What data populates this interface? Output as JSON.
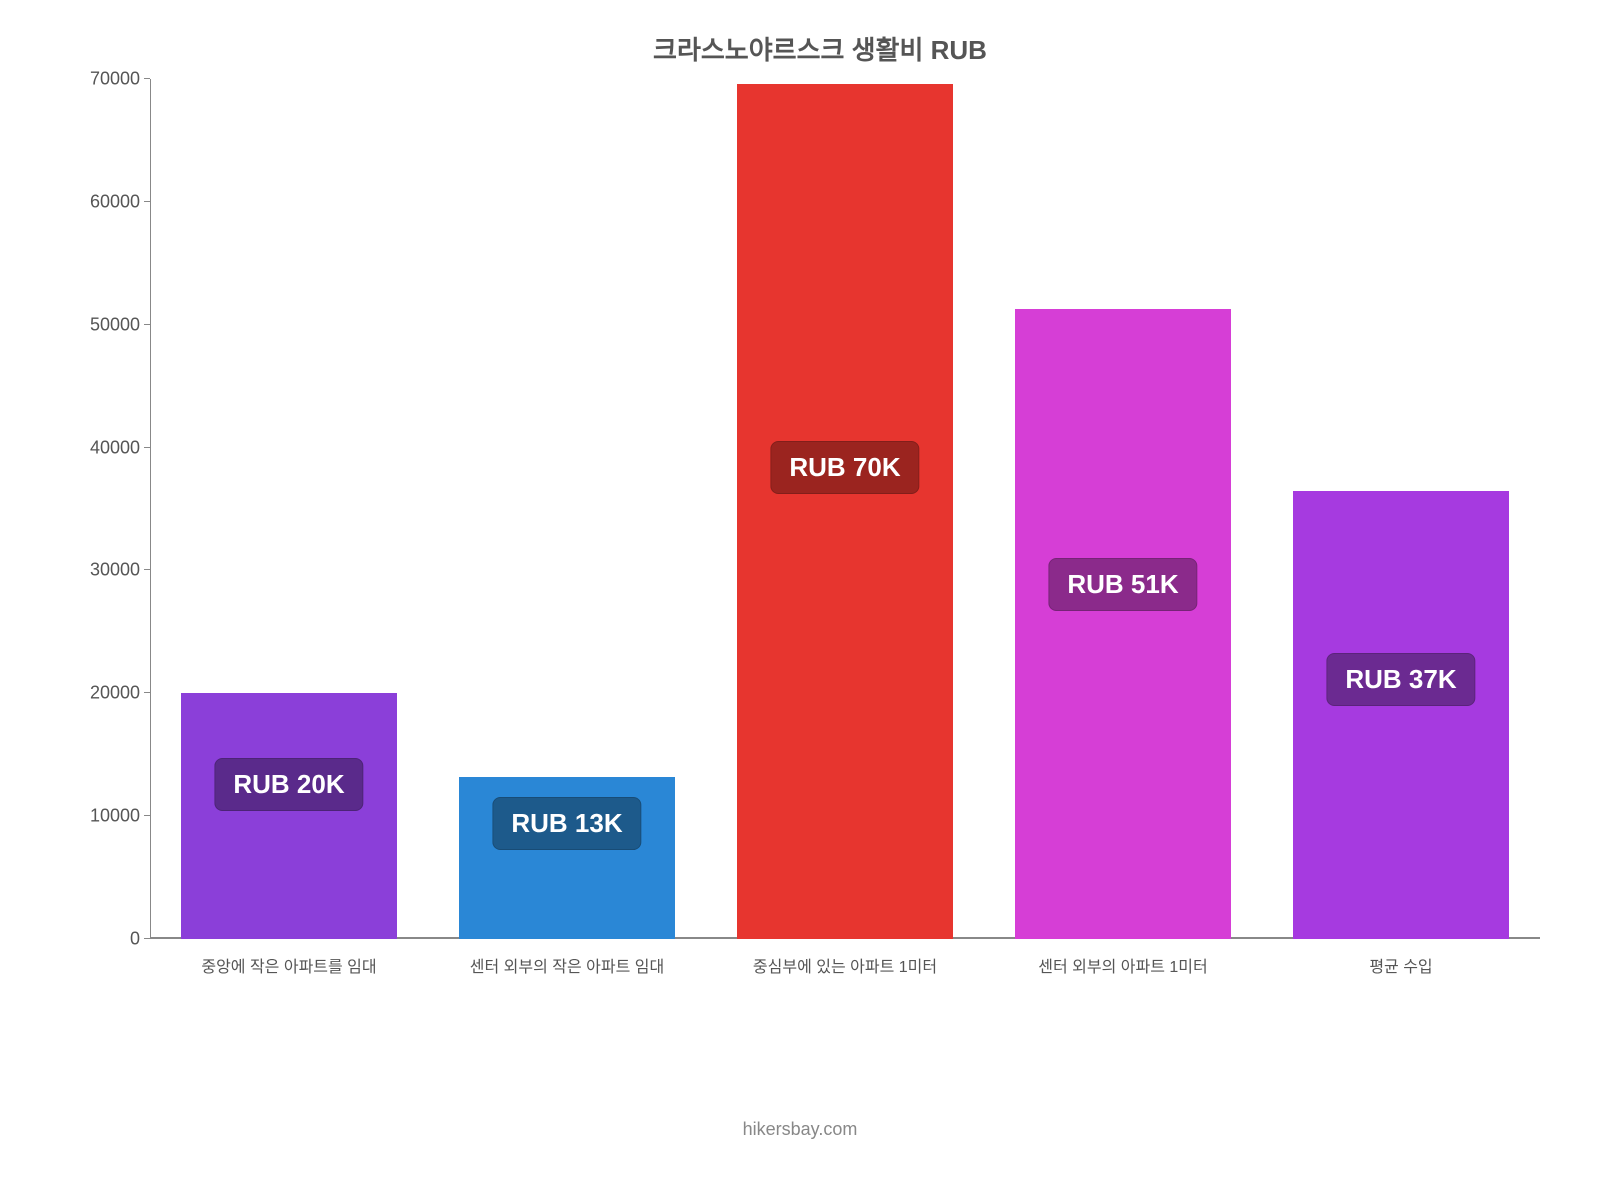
{
  "chart": {
    "type": "bar",
    "title": "크라스노야르스크 생활비 RUB",
    "title_fontsize": 26,
    "title_color": "#555555",
    "background_color": "#ffffff",
    "axis_color": "#888888",
    "label_color": "#555555",
    "ylim": [
      0,
      70000
    ],
    "ytick_step": 10000,
    "yticks": [
      0,
      10000,
      20000,
      30000,
      40000,
      50000,
      60000,
      70000
    ],
    "categories": [
      "중앙에 작은 아파트를 임대",
      "센터 외부의 작은 아파트 임대",
      "중심부에 있는 아파트 1미터",
      "센터 외부의 아파트 1미터",
      "평균 수입"
    ],
    "values": [
      20000,
      13200,
      69600,
      51300,
      36500
    ],
    "bar_colors": [
      "#8b3fd9",
      "#2a87d6",
      "#e7352f",
      "#d63ed6",
      "#a63ae0"
    ],
    "badge_labels": [
      "RUB 20K",
      "RUB 13K",
      "RUB 70K",
      "RUB 51K",
      "RUB 37K"
    ],
    "badge_bg_colors": [
      "#5a2a8b",
      "#1d5a8b",
      "#9b241f",
      "#8b2a8b",
      "#6b2a91"
    ],
    "badge_fontsize": 26,
    "xlabel_fontsize": 16,
    "ylabel_fontsize": 18,
    "bar_width": 0.78
  },
  "attribution": "hikersbay.com"
}
